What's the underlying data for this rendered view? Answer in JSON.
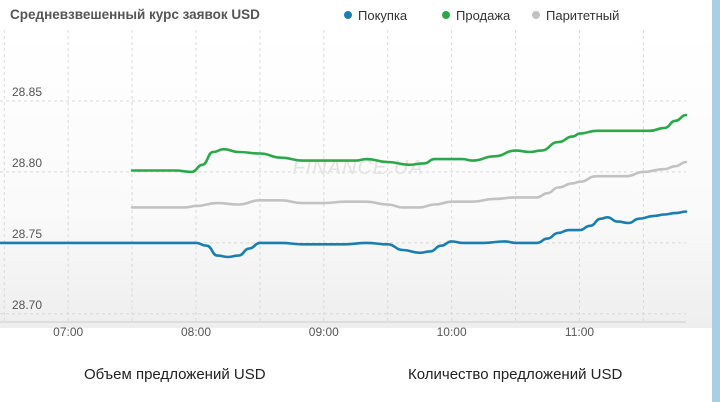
{
  "chart_data": {
    "type": "line",
    "title": "Средневзвешенный курс заявок USD",
    "legend_position": "top",
    "watermark": "FINANCE.UA",
    "x_ticks": [
      "07:00",
      "08:00",
      "09:00",
      "10:00",
      "11:00"
    ],
    "x_range": [
      "06:28",
      "11:50"
    ],
    "y_ticks": [
      "28.70",
      "28.75",
      "28.80",
      "28.85"
    ],
    "ylim": [
      28.69,
      28.9
    ],
    "grid": true,
    "series": [
      {
        "name": "Покупка",
        "color": "#1a7fb0",
        "points": [
          [
            "06:28",
            28.75
          ],
          [
            "07:30",
            28.75
          ],
          [
            "07:55",
            28.75
          ],
          [
            "08:00",
            28.75
          ],
          [
            "08:05",
            28.748
          ],
          [
            "08:10",
            28.741
          ],
          [
            "08:15",
            28.74
          ],
          [
            "08:20",
            28.741
          ],
          [
            "08:25",
            28.746
          ],
          [
            "08:30",
            28.75
          ],
          [
            "08:40",
            28.75
          ],
          [
            "08:50",
            28.749
          ],
          [
            "09:00",
            28.749
          ],
          [
            "09:10",
            28.749
          ],
          [
            "09:20",
            28.75
          ],
          [
            "09:30",
            28.749
          ],
          [
            "09:37",
            28.745
          ],
          [
            "09:45",
            28.743
          ],
          [
            "09:50",
            28.744
          ],
          [
            "09:55",
            28.748
          ],
          [
            "10:00",
            28.751
          ],
          [
            "10:05",
            28.75
          ],
          [
            "10:15",
            28.75
          ],
          [
            "10:25",
            28.751
          ],
          [
            "10:30",
            28.75
          ],
          [
            "10:40",
            28.75
          ],
          [
            "10:45",
            28.753
          ],
          [
            "10:50",
            28.757
          ],
          [
            "10:55",
            28.759
          ],
          [
            "11:00",
            28.759
          ],
          [
            "11:05",
            28.762
          ],
          [
            "11:10",
            28.767
          ],
          [
            "11:13",
            28.768
          ],
          [
            "11:18",
            28.765
          ],
          [
            "11:23",
            28.764
          ],
          [
            "11:28",
            28.767
          ],
          [
            "11:35",
            28.769
          ],
          [
            "11:40",
            28.77
          ],
          [
            "11:45",
            28.771
          ],
          [
            "11:50",
            28.772
          ]
        ]
      },
      {
        "name": "Продажа",
        "color": "#2aa84a",
        "points": [
          [
            "07:30",
            28.801
          ],
          [
            "07:50",
            28.801
          ],
          [
            "07:58",
            28.8
          ],
          [
            "08:03",
            28.805
          ],
          [
            "08:08",
            28.814
          ],
          [
            "08:13",
            28.816
          ],
          [
            "08:20",
            28.814
          ],
          [
            "08:30",
            28.813
          ],
          [
            "08:40",
            28.81
          ],
          [
            "08:50",
            28.808
          ],
          [
            "09:00",
            28.808
          ],
          [
            "09:05",
            28.808
          ],
          [
            "09:15",
            28.808
          ],
          [
            "09:20",
            28.809
          ],
          [
            "09:30",
            28.807
          ],
          [
            "09:40",
            28.805
          ],
          [
            "09:47",
            28.806
          ],
          [
            "09:52",
            28.809
          ],
          [
            "10:00",
            28.809
          ],
          [
            "10:05",
            28.809
          ],
          [
            "10:10",
            28.808
          ],
          [
            "10:20",
            28.811
          ],
          [
            "10:30",
            28.815
          ],
          [
            "10:37",
            28.814
          ],
          [
            "10:42",
            28.815
          ],
          [
            "10:50",
            28.821
          ],
          [
            "10:57",
            28.825
          ],
          [
            "11:00",
            28.827
          ],
          [
            "11:08",
            28.829
          ],
          [
            "11:20",
            28.829
          ],
          [
            "11:33",
            28.829
          ],
          [
            "11:40",
            28.831
          ],
          [
            "11:45",
            28.836
          ],
          [
            "11:50",
            28.84
          ]
        ]
      },
      {
        "name": "Паритетный",
        "color": "#c2c2c2",
        "points": [
          [
            "07:30",
            28.775
          ],
          [
            "07:55",
            28.775
          ],
          [
            "08:00",
            28.776
          ],
          [
            "08:10",
            28.778
          ],
          [
            "08:20",
            28.777
          ],
          [
            "08:30",
            28.78
          ],
          [
            "08:40",
            28.78
          ],
          [
            "08:50",
            28.778
          ],
          [
            "09:00",
            28.778
          ],
          [
            "09:10",
            28.779
          ],
          [
            "09:20",
            28.779
          ],
          [
            "09:30",
            28.777
          ],
          [
            "09:37",
            28.775
          ],
          [
            "09:45",
            28.775
          ],
          [
            "09:52",
            28.777
          ],
          [
            "10:00",
            28.779
          ],
          [
            "10:10",
            28.779
          ],
          [
            "10:20",
            28.781
          ],
          [
            "10:30",
            28.782
          ],
          [
            "10:40",
            28.782
          ],
          [
            "10:45",
            28.785
          ],
          [
            "10:50",
            28.789
          ],
          [
            "10:57",
            28.792
          ],
          [
            "11:00",
            28.793
          ],
          [
            "11:08",
            28.797
          ],
          [
            "11:15",
            28.797
          ],
          [
            "11:22",
            28.797
          ],
          [
            "11:30",
            28.8
          ],
          [
            "11:40",
            28.802
          ],
          [
            "11:45",
            28.804
          ],
          [
            "11:50",
            28.807
          ]
        ]
      }
    ]
  },
  "footer": {
    "left_label": "Объем предложений USD",
    "right_label": "Количество предложений USD"
  }
}
